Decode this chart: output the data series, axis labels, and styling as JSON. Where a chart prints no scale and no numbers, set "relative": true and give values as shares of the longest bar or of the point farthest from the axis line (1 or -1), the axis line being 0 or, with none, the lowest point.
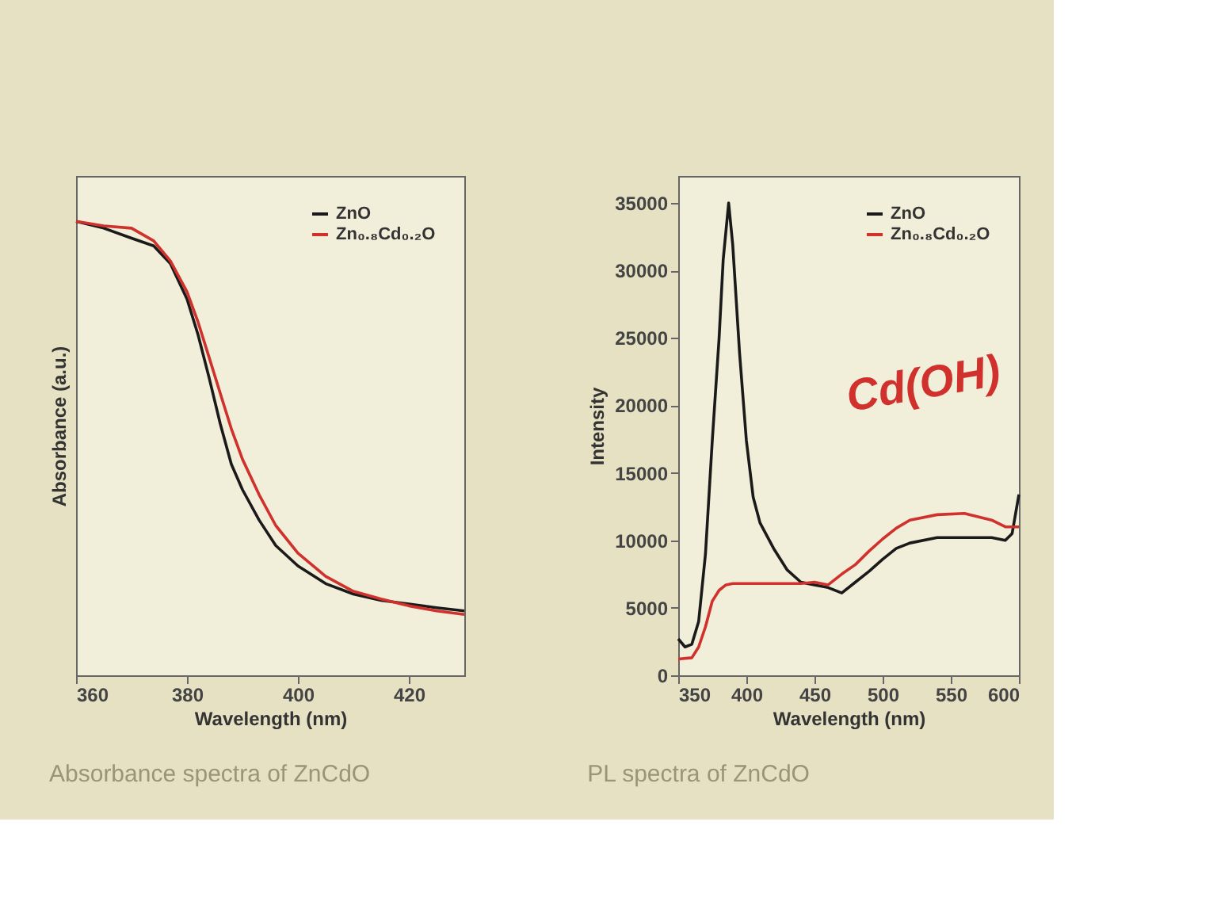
{
  "chart_data": [
    {
      "type": "line",
      "xlabel": "Wavelength (nm)",
      "ylabel": "Absorbance (a.u.)",
      "relative": true,
      "legend": "top right",
      "xlim": [
        360,
        430
      ],
      "xticks": [
        360,
        380,
        400,
        420
      ],
      "annotations": [
        "Absorbance spectra of ZnCdO"
      ],
      "series": [
        {
          "name": "ZnO",
          "color": "#1a1a1a",
          "x": [
            360,
            365,
            370,
            374,
            377,
            380,
            382,
            384,
            386,
            388,
            390,
            393,
            396,
            400,
            405,
            410,
            415,
            420,
            425,
            430
          ],
          "values": [
            1.0,
            0.985,
            0.963,
            0.946,
            0.907,
            0.829,
            0.75,
            0.655,
            0.554,
            0.465,
            0.409,
            0.342,
            0.286,
            0.241,
            0.202,
            0.179,
            0.165,
            0.157,
            0.149,
            0.142
          ]
        },
        {
          "name": "Zn₀.₈Cd₀.₂O",
          "color": "#d0312d",
          "x": [
            360,
            365,
            370,
            374,
            377,
            380,
            382,
            384,
            386,
            388,
            390,
            393,
            396,
            400,
            405,
            410,
            415,
            420,
            425,
            430
          ],
          "values": [
            1.0,
            0.99,
            0.985,
            0.957,
            0.913,
            0.845,
            0.778,
            0.7,
            0.621,
            0.543,
            0.476,
            0.398,
            0.33,
            0.269,
            0.218,
            0.185,
            0.168,
            0.153,
            0.142,
            0.134
          ]
        }
      ]
    },
    {
      "type": "line",
      "xlabel": "Wavelength (nm)",
      "ylabel": "Intensity",
      "legend": "top right",
      "xlim": [
        350,
        600
      ],
      "xticks": [
        350,
        400,
        450,
        500,
        550,
        600
      ],
      "ylim": [
        0,
        37000
      ],
      "yticks": [
        0,
        5000,
        10000,
        15000,
        20000,
        25000,
        30000,
        35000
      ],
      "annotations": [
        "Cd(OH)",
        "PL spectra of ZnCdO"
      ],
      "series": [
        {
          "name": "ZnO",
          "color": "#1a1a1a",
          "x": [
            350,
            355,
            360,
            365,
            370,
            375,
            380,
            383,
            387,
            390,
            395,
            400,
            405,
            410,
            420,
            430,
            440,
            450,
            460,
            470,
            480,
            490,
            500,
            510,
            520,
            540,
            560,
            580,
            590,
            595,
            600
          ],
          "values": [
            2700,
            2100,
            2300,
            4000,
            9000,
            17400,
            25000,
            30800,
            35000,
            31900,
            23900,
            17400,
            13200,
            11300,
            9400,
            7800,
            6900,
            6700,
            6500,
            6100,
            6900,
            7700,
            8600,
            9400,
            9800,
            10200,
            10200,
            10200,
            10000,
            10500,
            13400
          ]
        },
        {
          "name": "Zn₀.₈Cd₀.₂O",
          "color": "#d0312d",
          "x": [
            350,
            360,
            365,
            370,
            375,
            380,
            385,
            390,
            400,
            420,
            440,
            450,
            460,
            470,
            480,
            490,
            500,
            510,
            520,
            540,
            560,
            580,
            590,
            600
          ],
          "values": [
            1200,
            1300,
            2100,
            3600,
            5500,
            6300,
            6700,
            6800,
            6800,
            6800,
            6800,
            6900,
            6700,
            7500,
            8200,
            9200,
            10100,
            10900,
            11500,
            11900,
            12000,
            11500,
            11000,
            11000
          ]
        }
      ]
    }
  ]
}
